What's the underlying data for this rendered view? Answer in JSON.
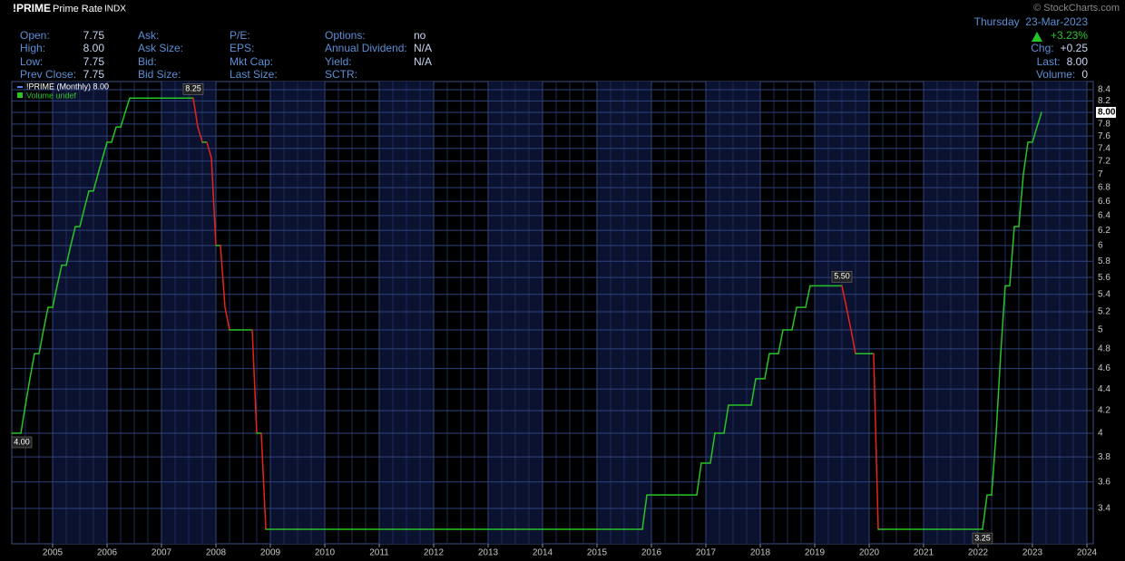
{
  "quote": {
    "symbol": "!PRIME",
    "name": "Prime Rate",
    "exchange": "INDX",
    "watermark": "© StockCharts.com",
    "date": "Thursday  23-Mar-2023",
    "change_pct": "+3.23%",
    "fields": [
      [
        {
          "label": "Open:",
          "value": "7.75"
        },
        {
          "label": "High:",
          "value": "8.00"
        },
        {
          "label": "Low:",
          "value": "7.75"
        },
        {
          "label": "Prev Close:",
          "value": "7.75"
        }
      ],
      [
        {
          "label": "Ask:"
        },
        {
          "label": "Ask Size:"
        },
        {
          "label": "Bid:"
        },
        {
          "label": "Bid Size:"
        }
      ],
      [
        {
          "label": "P/E:"
        },
        {
          "label": "EPS:"
        },
        {
          "label": "Mkt Cap:"
        },
        {
          "label": "Last Size:"
        }
      ],
      [
        {
          "label": "Options:",
          "value": "no"
        },
        {
          "label": "Annual Dividend:",
          "value": "N/A"
        },
        {
          "label": "Yield:",
          "value": "N/A"
        },
        {
          "label": "SCTR:"
        }
      ]
    ],
    "right_fields": [
      {
        "label": "Chg:",
        "value": "+0.25"
      },
      {
        "label": "Last:",
        "value": "8.00"
      },
      {
        "label": "Volume:",
        "value": "0"
      }
    ]
  },
  "chart_data": {
    "type": "line",
    "log_scale": true,
    "grid": true,
    "x": [
      2004.25,
      2004.417,
      2004.5,
      2004.583,
      2004.667,
      2004.75,
      2004.833,
      2004.917,
      2005.0,
      2005.083,
      2005.167,
      2005.25,
      2005.333,
      2005.417,
      2005.5,
      2005.583,
      2005.667,
      2005.75,
      2005.833,
      2005.917,
      2006.0,
      2006.083,
      2006.167,
      2006.25,
      2006.333,
      2006.417,
      2007.583,
      2007.667,
      2007.75,
      2007.833,
      2007.917,
      2008.0,
      2008.083,
      2008.167,
      2008.25,
      2008.667,
      2008.75,
      2008.833,
      2008.917,
      2015.833,
      2015.917,
      2016.833,
      2016.917,
      2017.083,
      2017.167,
      2017.333,
      2017.417,
      2017.833,
      2017.917,
      2018.083,
      2018.167,
      2018.333,
      2018.417,
      2018.583,
      2018.667,
      2018.833,
      2018.917,
      2019.5,
      2019.583,
      2019.667,
      2019.75,
      2020.083,
      2020.167,
      2022.083,
      2022.167,
      2022.25,
      2022.333,
      2022.417,
      2022.5,
      2022.583,
      2022.667,
      2022.75,
      2022.833,
      2022.917,
      2023.0,
      2023.083,
      2023.167
    ],
    "series": [
      {
        "name": "!PRIME (Monthly) 8.00",
        "color": "#27c427",
        "down_color": "#e8231b",
        "values": [
          4.0,
          4.0,
          4.25,
          4.5,
          4.75,
          4.75,
          5.0,
          5.25,
          5.25,
          5.5,
          5.75,
          5.75,
          6.0,
          6.25,
          6.25,
          6.5,
          6.75,
          6.75,
          7.0,
          7.25,
          7.5,
          7.5,
          7.75,
          7.75,
          8.0,
          8.25,
          8.25,
          7.75,
          7.5,
          7.5,
          7.25,
          6.0,
          6.0,
          5.25,
          5.0,
          5.0,
          4.0,
          4.0,
          3.25,
          3.25,
          3.5,
          3.5,
          3.75,
          3.75,
          4.0,
          4.0,
          4.25,
          4.25,
          4.5,
          4.5,
          4.75,
          4.75,
          5.0,
          5.0,
          5.25,
          5.25,
          5.5,
          5.5,
          5.25,
          5.0,
          4.75,
          4.75,
          3.25,
          3.25,
          3.5,
          3.5,
          4.0,
          4.75,
          5.5,
          5.5,
          6.25,
          6.25,
          7.0,
          7.5,
          7.5,
          7.75,
          8.0
        ]
      }
    ],
    "legend_extra": "Volume undef",
    "annotations": [
      {
        "x": 2004.25,
        "value": 4.0,
        "label": "4.00"
      },
      {
        "x": 2007.583,
        "value": 8.25,
        "label": "8.25"
      },
      {
        "x": 2019.5,
        "value": 5.5,
        "label": "5.50"
      },
      {
        "x": 2022.083,
        "value": 3.25,
        "label": "3.25"
      }
    ],
    "last_label": {
      "value": 8.0,
      "label": "8.00"
    },
    "xlim": [
      2004.25,
      2024.117
    ],
    "xticks": [
      2005,
      2006,
      2007,
      2008,
      2009,
      2010,
      2011,
      2012,
      2013,
      2014,
      2015,
      2016,
      2017,
      2018,
      2019,
      2020,
      2021,
      2022,
      2023,
      2024
    ],
    "ylim": [
      3.15,
      8.55
    ],
    "yticks": [
      3.4,
      3.6,
      3.8,
      4.0,
      4.2,
      4.4,
      4.6,
      4.8,
      5.0,
      5.2,
      5.4,
      5.6,
      5.8,
      6.0,
      6.2,
      6.4,
      6.6,
      6.8,
      7.0,
      7.2,
      7.4,
      7.6,
      7.8,
      8.0,
      8.2,
      8.4
    ]
  }
}
